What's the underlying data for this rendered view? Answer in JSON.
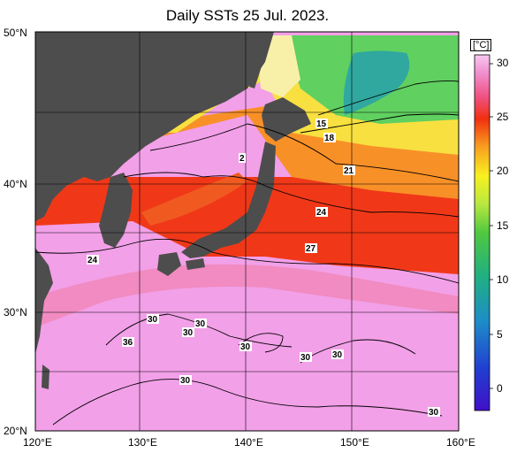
{
  "title": "Daily SSTs 25 Jul. 2023.",
  "lat_labels": [
    "50°N",
    "40°N",
    "30°N",
    "20°N"
  ],
  "lon_labels": [
    "120°E",
    "130°E",
    "140°E",
    "150°E",
    "160°E"
  ],
  "colorbar": {
    "unit": "[°C]",
    "ticks": [
      "30",
      "25",
      "20",
      "15",
      "10",
      "5",
      "0"
    ],
    "range": [
      -2,
      32
    ]
  },
  "contour_labels": [
    "15",
    "18",
    "21",
    "24",
    "27",
    "24",
    "2",
    "30",
    "30",
    "30",
    "30",
    "36",
    "30",
    "30",
    "30",
    "30",
    "30"
  ],
  "colors": {
    "land": "#4d4d4d",
    "ocean_warm": "#f2a0e8",
    "ocean_red": "#f03010",
    "ocean_orange": "#f89020",
    "ocean_yellow": "#f8e040",
    "ocean_green": "#60d060",
    "ocean_teal": "#30a8a0"
  }
}
